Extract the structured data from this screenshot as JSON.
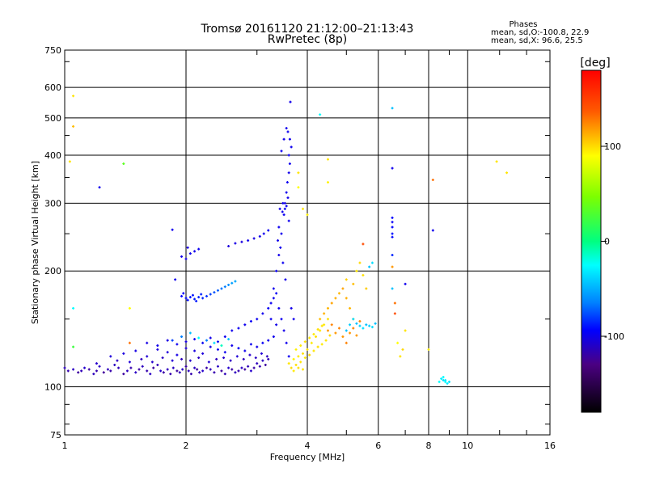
{
  "chart_data": {
    "type": "scatter",
    "title": "Tromsø 20161120 21:12:00–21:13:43",
    "subtitle": "RwPretec (8p)",
    "xlabel": "Frequency [MHz]",
    "ylabel": "Stationary phase Virtual Height [km]",
    "x_scale": "log",
    "y_scale": "log",
    "xlim": [
      1,
      16
    ],
    "ylim": [
      75,
      750
    ],
    "x_ticks": [
      1,
      2,
      4,
      6,
      8,
      10,
      16
    ],
    "y_ticks": [
      75,
      100,
      200,
      300,
      400,
      500,
      600,
      750
    ],
    "grid": true,
    "phase_info": {
      "title": "Phases",
      "line1": "mean, sd,O:-100.8, 22.9",
      "line2": "mean, sd,X:  96.6, 25.5"
    },
    "colorbar": {
      "label": "[deg]",
      "range": [
        -180,
        180
      ],
      "ticks": [
        100,
        0,
        -100
      ]
    },
    "points": [
      [
        1.0,
        112,
        -130
      ],
      [
        1.02,
        110,
        -135
      ],
      [
        1.05,
        111,
        -128
      ],
      [
        1.08,
        109,
        -140
      ],
      [
        1.1,
        110,
        -132
      ],
      [
        1.12,
        112,
        -125
      ],
      [
        1.15,
        111,
        -138
      ],
      [
        1.18,
        108,
        -130
      ],
      [
        1.2,
        110,
        -135
      ],
      [
        1.22,
        113,
        -128
      ],
      [
        1.25,
        109,
        -142
      ],
      [
        1.28,
        111,
        -130
      ],
      [
        1.3,
        110,
        -136
      ],
      [
        1.33,
        114,
        -128
      ],
      [
        1.36,
        112,
        -132
      ],
      [
        1.4,
        108,
        -140
      ],
      [
        1.43,
        110,
        -130
      ],
      [
        1.46,
        112,
        -135
      ],
      [
        1.5,
        109,
        -128
      ],
      [
        1.53,
        111,
        -138
      ],
      [
        1.56,
        113,
        -130
      ],
      [
        1.6,
        110,
        -135
      ],
      [
        1.63,
        108,
        -128
      ],
      [
        1.66,
        112,
        -140
      ],
      [
        1.7,
        114,
        -132
      ],
      [
        1.73,
        110,
        -125
      ],
      [
        1.76,
        109,
        -138
      ],
      [
        1.8,
        111,
        -130
      ],
      [
        1.83,
        108,
        -135
      ],
      [
        1.86,
        112,
        -128
      ],
      [
        1.9,
        110,
        -140
      ],
      [
        1.93,
        109,
        -132
      ],
      [
        1.96,
        111,
        -125
      ],
      [
        2.0,
        113,
        -138
      ],
      [
        2.03,
        110,
        -130
      ],
      [
        2.06,
        108,
        -135
      ],
      [
        2.1,
        112,
        -128
      ],
      [
        2.13,
        111,
        -140
      ],
      [
        2.16,
        109,
        -132
      ],
      [
        2.2,
        110,
        -125
      ],
      [
        2.25,
        112,
        -138
      ],
      [
        2.3,
        111,
        -130
      ],
      [
        2.35,
        109,
        -135
      ],
      [
        2.4,
        113,
        -128
      ],
      [
        2.45,
        110,
        -140
      ],
      [
        2.5,
        108,
        -132
      ],
      [
        2.55,
        112,
        -125
      ],
      [
        2.6,
        111,
        -138
      ],
      [
        2.65,
        109,
        -130
      ],
      [
        2.7,
        110,
        -135
      ],
      [
        2.75,
        112,
        -128
      ],
      [
        2.8,
        111,
        -140
      ],
      [
        2.85,
        113,
        -132
      ],
      [
        2.9,
        110,
        -125
      ],
      [
        2.95,
        112,
        -138
      ],
      [
        3.0,
        115,
        -130
      ],
      [
        3.05,
        113,
        -135
      ],
      [
        3.1,
        117,
        -128
      ],
      [
        3.15,
        114,
        -140
      ],
      [
        3.2,
        118,
        -132
      ],
      [
        1.3,
        120,
        -120
      ],
      [
        1.4,
        122,
        -118
      ],
      [
        1.5,
        124,
        -115
      ],
      [
        1.6,
        120,
        -122
      ],
      [
        1.7,
        125,
        -118
      ],
      [
        1.8,
        123,
        -120
      ],
      [
        1.9,
        121,
        -115
      ],
      [
        2.0,
        126,
        -122
      ],
      [
        2.1,
        124,
        -118
      ],
      [
        2.2,
        122,
        -120
      ],
      [
        2.3,
        127,
        -115
      ],
      [
        2.4,
        125,
        -110
      ],
      [
        2.5,
        123,
        -108
      ],
      [
        2.6,
        128,
        -112
      ],
      [
        2.7,
        126,
        -105
      ],
      [
        2.8,
        124,
        -110
      ],
      [
        2.9,
        129,
        -108
      ],
      [
        3.0,
        127,
        -112
      ],
      [
        3.1,
        130,
        -105
      ],
      [
        3.2,
        132,
        -110
      ],
      [
        1.2,
        115,
        -125
      ],
      [
        1.35,
        117,
        -128
      ],
      [
        1.45,
        116,
        -122
      ],
      [
        1.55,
        118,
        -130
      ],
      [
        1.65,
        116,
        -125
      ],
      [
        1.75,
        119,
        -128
      ],
      [
        1.85,
        117,
        -122
      ],
      [
        1.95,
        118,
        -130
      ],
      [
        2.05,
        117,
        -125
      ],
      [
        2.15,
        119,
        -128
      ],
      [
        2.28,
        116,
        -122
      ],
      [
        2.38,
        118,
        -130
      ],
      [
        2.48,
        119,
        -125
      ],
      [
        2.58,
        117,
        -128
      ],
      [
        2.68,
        120,
        -122
      ],
      [
        2.78,
        118,
        -130
      ],
      [
        2.88,
        121,
        -125
      ],
      [
        2.98,
        119,
        -128
      ],
      [
        3.08,
        122,
        -122
      ],
      [
        3.18,
        120,
        -130
      ],
      [
        1.6,
        130,
        -115
      ],
      [
        1.7,
        128,
        -112
      ],
      [
        1.8,
        132,
        -115
      ],
      [
        1.9,
        129,
        -110
      ],
      [
        2.0,
        131,
        -115
      ],
      [
        2.1,
        133,
        -112
      ],
      [
        2.2,
        130,
        -108
      ],
      [
        2.3,
        134,
        -112
      ],
      [
        2.4,
        131,
        -108
      ],
      [
        2.5,
        135,
        -110
      ],
      [
        1.85,
        132,
        -80
      ],
      [
        1.95,
        135,
        -60
      ],
      [
        2.05,
        138,
        -40
      ],
      [
        2.15,
        134,
        -20
      ],
      [
        2.25,
        132,
        -60
      ],
      [
        2.35,
        130,
        -30
      ],
      [
        2.45,
        128,
        -10
      ],
      [
        2.55,
        133,
        -40
      ],
      [
        2.6,
        140,
        -110
      ],
      [
        2.7,
        142,
        -108
      ],
      [
        2.8,
        145,
        -110
      ],
      [
        2.9,
        148,
        -105
      ],
      [
        3.0,
        150,
        -108
      ],
      [
        3.1,
        155,
        -110
      ],
      [
        3.2,
        160,
        -105
      ],
      [
        3.25,
        165,
        -108
      ],
      [
        3.3,
        170,
        -110
      ],
      [
        3.35,
        175,
        -105
      ],
      [
        1.95,
        172,
        -100
      ],
      [
        2.0,
        170,
        -98
      ],
      [
        2.05,
        171,
        -95
      ],
      [
        2.1,
        169,
        -92
      ],
      [
        2.15,
        171,
        -90
      ],
      [
        2.2,
        170,
        -88
      ],
      [
        2.25,
        172,
        -85
      ],
      [
        2.3,
        174,
        -80
      ],
      [
        2.35,
        176,
        -75
      ],
      [
        2.4,
        178,
        -70
      ],
      [
        2.45,
        180,
        -65
      ],
      [
        2.5,
        182,
        -60
      ],
      [
        2.55,
        184,
        -55
      ],
      [
        2.6,
        186,
        -50
      ],
      [
        2.65,
        188,
        -48
      ],
      [
        1.97,
        175,
        -100
      ],
      [
        2.02,
        168,
        -98
      ],
      [
        2.08,
        173,
        -95
      ],
      [
        2.12,
        167,
        -92
      ],
      [
        2.18,
        174,
        -90
      ],
      [
        1.88,
        190,
        -110
      ],
      [
        2.0,
        215,
        -115
      ],
      [
        2.05,
        222,
        -110
      ],
      [
        2.1,
        225,
        -112
      ],
      [
        2.15,
        228,
        -108
      ],
      [
        2.02,
        230,
        -115
      ],
      [
        1.95,
        218,
        -112
      ],
      [
        1.85,
        256,
        -110
      ],
      [
        2.55,
        232,
        -120
      ],
      [
        2.65,
        236,
        -115
      ],
      [
        2.75,
        238,
        -118
      ],
      [
        2.85,
        240,
        -112
      ],
      [
        2.95,
        243,
        -115
      ],
      [
        3.05,
        246,
        -112
      ],
      [
        3.12,
        250,
        -110
      ],
      [
        3.2,
        255,
        -108
      ],
      [
        3.3,
        180,
        -110
      ],
      [
        3.35,
        200,
        -108
      ],
      [
        3.4,
        220,
        -112
      ],
      [
        3.45,
        250,
        -110
      ],
      [
        3.5,
        280,
        -108
      ],
      [
        3.52,
        300,
        -112
      ],
      [
        3.55,
        320,
        -110
      ],
      [
        3.57,
        340,
        -108
      ],
      [
        3.6,
        360,
        -112
      ],
      [
        3.62,
        380,
        -110
      ],
      [
        3.45,
        410,
        -108
      ],
      [
        3.5,
        440,
        -112
      ],
      [
        3.55,
        470,
        -110
      ],
      [
        3.58,
        460,
        -108
      ],
      [
        3.62,
        440,
        -112
      ],
      [
        3.65,
        420,
        -110
      ],
      [
        3.6,
        400,
        -108
      ],
      [
        3.63,
        550,
        -112
      ],
      [
        3.48,
        300,
        -110
      ],
      [
        3.52,
        290,
        -108
      ],
      [
        3.42,
        290,
        -112
      ],
      [
        3.47,
        285,
        -110
      ],
      [
        3.55,
        295,
        -108
      ],
      [
        3.58,
        310,
        -112
      ],
      [
        3.6,
        270,
        -110
      ],
      [
        3.4,
        260,
        -108
      ],
      [
        3.38,
        240,
        -112
      ],
      [
        3.43,
        230,
        -110
      ],
      [
        3.48,
        210,
        -108
      ],
      [
        3.53,
        190,
        -112
      ],
      [
        3.4,
        160,
        -110
      ],
      [
        3.45,
        150,
        -108
      ],
      [
        3.5,
        140,
        -112
      ],
      [
        3.55,
        130,
        -110
      ],
      [
        3.6,
        120,
        -108
      ],
      [
        3.35,
        145,
        -112
      ],
      [
        3.3,
        135,
        -110
      ],
      [
        3.25,
        150,
        -108
      ],
      [
        3.65,
        160,
        -112
      ],
      [
        3.7,
        150,
        -110
      ],
      [
        3.6,
        115,
        110
      ],
      [
        3.7,
        118,
        105
      ],
      [
        3.8,
        120,
        108
      ],
      [
        3.9,
        122,
        112
      ],
      [
        4.0,
        125,
        110
      ],
      [
        4.1,
        130,
        108
      ],
      [
        4.2,
        135,
        112
      ],
      [
        4.3,
        140,
        110
      ],
      [
        4.4,
        145,
        108
      ],
      [
        4.5,
        150,
        112
      ],
      [
        3.65,
        112,
        115
      ],
      [
        3.75,
        114,
        112
      ],
      [
        3.85,
        116,
        110
      ],
      [
        3.95,
        119,
        108
      ],
      [
        4.05,
        121,
        115
      ],
      [
        4.15,
        124,
        110
      ],
      [
        4.25,
        127,
        112
      ],
      [
        4.35,
        129,
        108
      ],
      [
        4.45,
        132,
        110
      ],
      [
        4.55,
        136,
        115
      ],
      [
        3.7,
        110,
        108
      ],
      [
        3.8,
        112,
        112
      ],
      [
        3.9,
        111,
        110
      ],
      [
        3.75,
        125,
        105
      ],
      [
        3.85,
        128,
        108
      ],
      [
        3.95,
        131,
        112
      ],
      [
        4.05,
        134,
        110
      ],
      [
        4.15,
        137,
        108
      ],
      [
        4.25,
        141,
        112
      ],
      [
        4.35,
        144,
        110
      ],
      [
        4.3,
        150,
        125
      ],
      [
        4.4,
        155,
        130
      ],
      [
        4.5,
        160,
        128
      ],
      [
        4.6,
        165,
        135
      ],
      [
        4.7,
        170,
        130
      ],
      [
        4.8,
        175,
        128
      ],
      [
        4.9,
        180,
        135
      ],
      [
        5.0,
        170,
        130
      ],
      [
        5.1,
        160,
        128
      ],
      [
        5.2,
        150,
        135
      ],
      [
        4.5,
        140,
        140
      ],
      [
        4.6,
        145,
        145
      ],
      [
        4.7,
        138,
        140
      ],
      [
        4.8,
        142,
        145
      ],
      [
        4.9,
        135,
        140
      ],
      [
        5.0,
        130,
        145
      ],
      [
        5.1,
        138,
        140
      ],
      [
        5.2,
        142,
        145
      ],
      [
        5.3,
        136,
        140
      ],
      [
        5.4,
        148,
        145
      ],
      [
        5.0,
        140,
        -40
      ],
      [
        5.1,
        145,
        -35
      ],
      [
        5.2,
        150,
        -30
      ],
      [
        5.3,
        146,
        -40
      ],
      [
        5.4,
        144,
        -35
      ],
      [
        5.5,
        142,
        -30
      ],
      [
        5.6,
        145,
        -40
      ],
      [
        5.7,
        144,
        -35
      ],
      [
        5.8,
        143,
        -30
      ],
      [
        5.9,
        146,
        -40
      ],
      [
        5.3,
        200,
        110
      ],
      [
        5.4,
        210,
        115
      ],
      [
        5.5,
        195,
        112
      ],
      [
        5.7,
        205,
        -40
      ],
      [
        5.8,
        210,
        -30
      ],
      [
        5.5,
        235,
        160
      ],
      [
        5.6,
        180,
        120
      ],
      [
        5.2,
        185,
        125
      ],
      [
        5.0,
        190,
        118
      ],
      [
        6.5,
        530,
        -40
      ],
      [
        6.5,
        370,
        -110
      ],
      [
        6.5,
        275,
        -100
      ],
      [
        6.5,
        268,
        -105
      ],
      [
        6.5,
        260,
        -100
      ],
      [
        6.5,
        250,
        -95
      ],
      [
        6.5,
        245,
        -100
      ],
      [
        6.5,
        220,
        -90
      ],
      [
        6.5,
        205,
        140
      ],
      [
        6.5,
        180,
        -40
      ],
      [
        6.6,
        165,
        150
      ],
      [
        6.6,
        155,
        160
      ],
      [
        6.7,
        130,
        100
      ],
      [
        6.8,
        120,
        110
      ],
      [
        7.0,
        185,
        -110
      ],
      [
        7.0,
        140,
        110
      ],
      [
        6.9,
        125,
        115
      ],
      [
        8.2,
        345,
        150
      ],
      [
        8.2,
        255,
        -110
      ],
      [
        8.0,
        125,
        105
      ],
      [
        8.5,
        103,
        -20
      ],
      [
        8.6,
        105,
        -25
      ],
      [
        8.7,
        104,
        -30
      ],
      [
        8.8,
        103,
        -20
      ],
      [
        8.9,
        102,
        -25
      ],
      [
        9.0,
        103,
        -30
      ],
      [
        8.7,
        106,
        -20
      ],
      [
        8.8,
        104,
        -25
      ],
      [
        11.8,
        385,
        110
      ],
      [
        12.5,
        360,
        110
      ],
      [
        1.05,
        570,
        110
      ],
      [
        1.05,
        475,
        125
      ],
      [
        1.03,
        385,
        110
      ],
      [
        1.4,
        380,
        30
      ],
      [
        1.22,
        330,
        -110
      ],
      [
        1.05,
        160,
        -20
      ],
      [
        1.45,
        160,
        100
      ],
      [
        1.05,
        127,
        20
      ],
      [
        1.45,
        130,
        150
      ],
      [
        3.8,
        360,
        110
      ],
      [
        3.8,
        330,
        100
      ],
      [
        3.9,
        290,
        110
      ],
      [
        4.0,
        280,
        105
      ],
      [
        4.5,
        390,
        110
      ],
      [
        4.5,
        340,
        105
      ],
      [
        4.3,
        510,
        -20
      ]
    ]
  }
}
